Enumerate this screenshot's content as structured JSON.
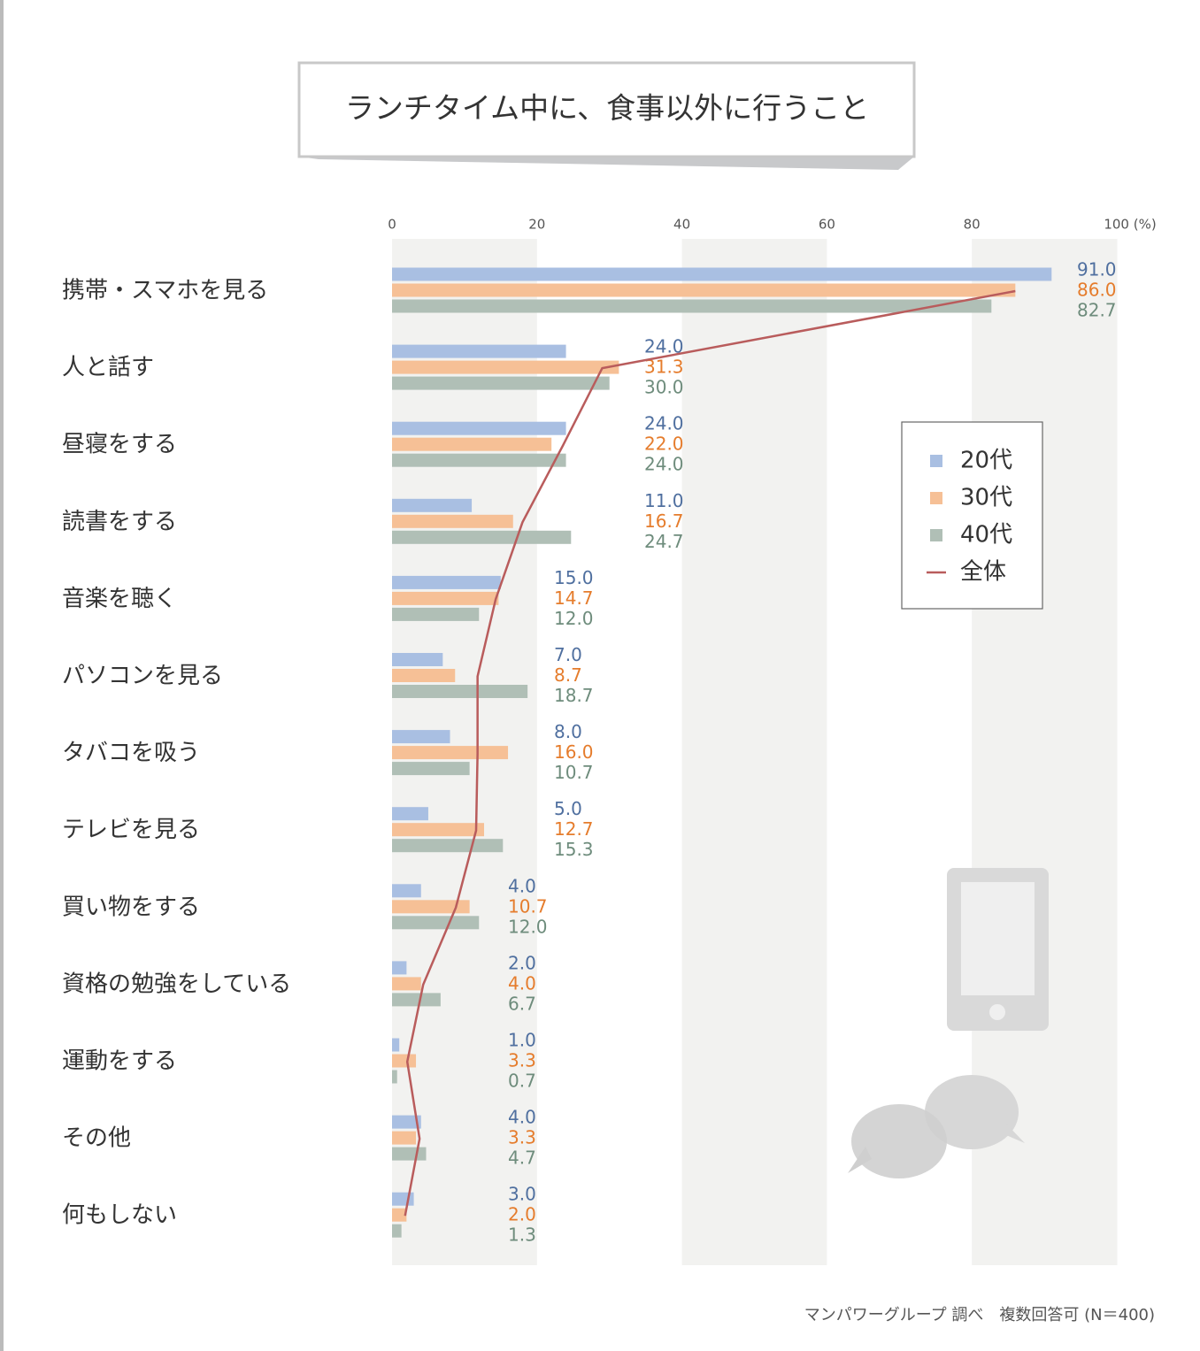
{
  "chart_data": {
    "type": "bar",
    "orientation": "horizontal",
    "title": "ランチタイム中に、食事以外に行うこと",
    "categories": [
      "携帯・スマホを見る",
      "人と話す",
      "昼寝をする",
      "読書をする",
      "音楽を聴く",
      "パソコンを見る",
      "タバコを吸う",
      "テレビを見る",
      "買い物をする",
      "資格の勉強をしている",
      "運動をする",
      "その他",
      "何もしない"
    ],
    "series": [
      {
        "name": "20代",
        "color": "#a9bfe2",
        "label_color": "#4f6f9f",
        "values": [
          91,
          24,
          24,
          11,
          15,
          7,
          8,
          5,
          4,
          2,
          1,
          4,
          3
        ],
        "value_labels": [
          "91.0",
          "24.0",
          "24.0",
          "11.0",
          "15.0",
          "7.0",
          "8.0",
          "5.0",
          "4.0",
          "2.0",
          "1.0",
          "4.0",
          "3.0"
        ]
      },
      {
        "name": "30代",
        "color": "#f6c096",
        "label_color": "#e57c2c",
        "values": [
          86,
          31.3,
          22,
          16.7,
          14.7,
          8.7,
          16,
          12.7,
          10.7,
          4,
          3.3,
          3.3,
          2
        ],
        "value_labels": [
          "86.0",
          "31.3",
          "22.0",
          "16.7",
          "14.7",
          "8.7",
          "16.0",
          "12.7",
          "10.7",
          "4.0",
          "3.3",
          "3.3",
          "2.0"
        ]
      },
      {
        "name": "40代",
        "color": "#b0bfb6",
        "label_color": "#6e8c7c",
        "values": [
          82.7,
          30,
          24,
          24.7,
          12,
          18.7,
          10.7,
          15.3,
          12,
          6.7,
          0.7,
          4.7,
          1.3
        ],
        "value_labels": [
          "82.7",
          "30.0",
          "24.0",
          "24.7",
          "12.0",
          "18.7",
          "10.7",
          "15.3",
          "12.0",
          "6.7",
          "0.7",
          "4.7",
          "1.3"
        ]
      },
      {
        "name": "全体",
        "type": "line",
        "color": "#b95c5c",
        "values": [
          86,
          29,
          23.6,
          18,
          14.3,
          11.8,
          11.8,
          11.6,
          8.8,
          4.3,
          2.1,
          3.8,
          1.8
        ]
      }
    ],
    "xlim": [
      0,
      100
    ],
    "xticks": [
      0,
      20,
      40,
      60,
      80,
      {
        "value": 100,
        "label": "100 (%)"
      }
    ],
    "note": "マンパワーグループ 調べ　複数回答可 (N＝400)"
  }
}
